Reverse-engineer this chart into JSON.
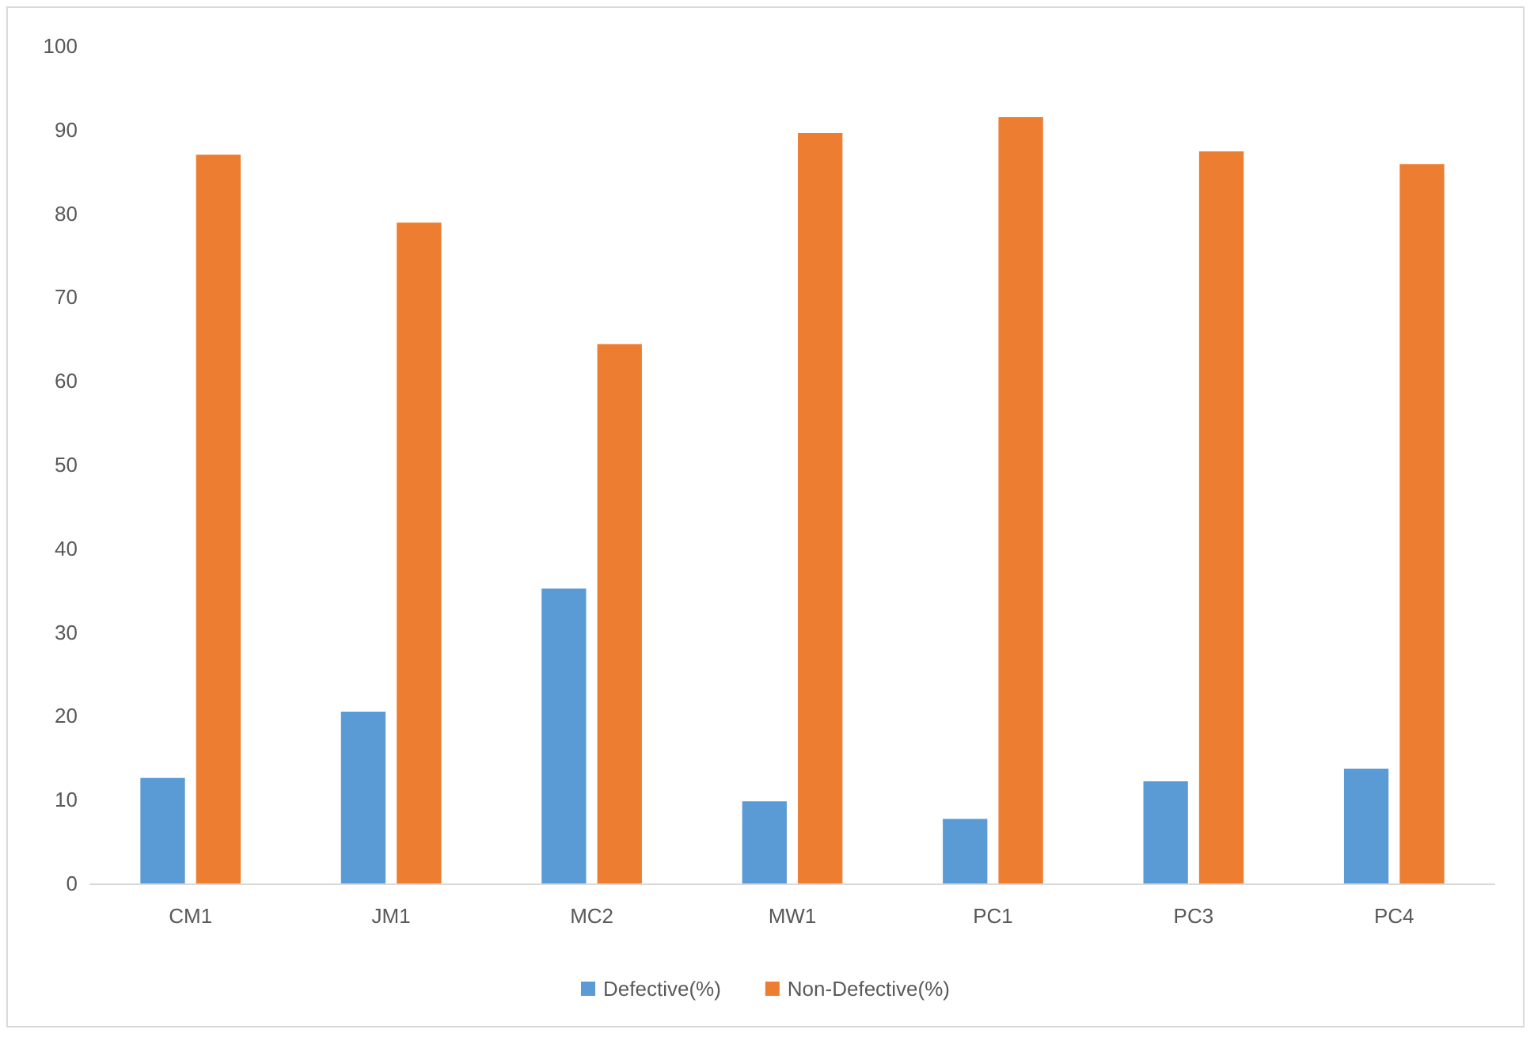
{
  "chart_data": {
    "type": "bar",
    "categories": [
      "CM1",
      "JM1",
      "MC2",
      "MW1",
      "PC1",
      "PC3",
      "PC4"
    ],
    "series": [
      {
        "name": "Defective(%)",
        "color": "#5b9bd5",
        "values": [
          12.6,
          20.5,
          35.2,
          9.8,
          7.7,
          12.2,
          13.7
        ]
      },
      {
        "name": "Non-Defective(%)",
        "color": "#ed7d31",
        "values": [
          87.0,
          78.9,
          64.4,
          89.6,
          91.5,
          87.4,
          85.9
        ]
      }
    ],
    "ylim": [
      0,
      100
    ],
    "yticks": [
      0,
      10,
      20,
      30,
      40,
      50,
      60,
      70,
      80,
      90,
      100
    ],
    "grid": false,
    "legend": "bottom"
  }
}
